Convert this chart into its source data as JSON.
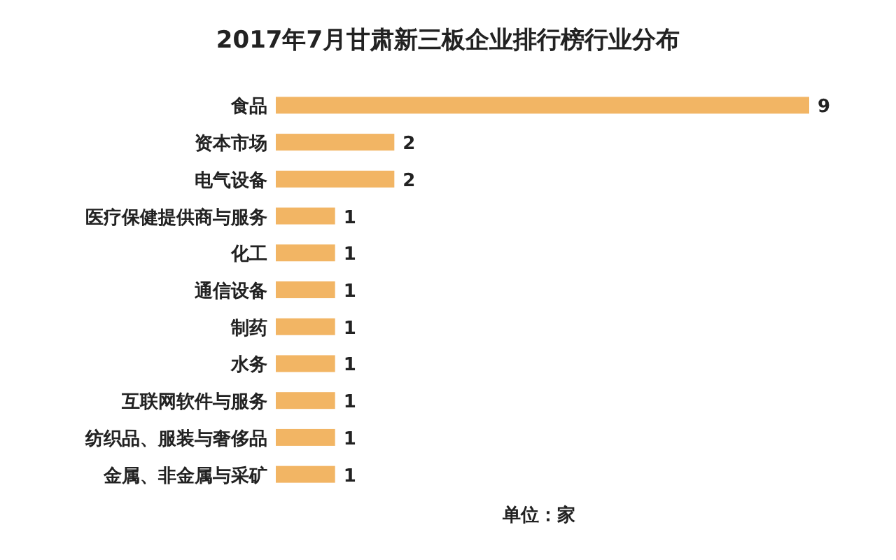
{
  "chart_data": {
    "type": "bar",
    "orientation": "horizontal",
    "title": "2017年7月甘肃新三板企业排行榜行业分布",
    "categories": [
      "食品",
      "资本市场",
      "电气设备",
      "医疗保健提供商与服务",
      "化工",
      "通信设备",
      "制药",
      "水务",
      "互联网软件与服务",
      "纺织品、服装与奢侈品",
      "金属、非金属与采矿"
    ],
    "values": [
      9,
      2,
      2,
      1,
      1,
      1,
      1,
      1,
      1,
      1,
      1
    ],
    "color": "#f2b564",
    "data_labels": true,
    "annotations": [
      "单位：家"
    ]
  }
}
